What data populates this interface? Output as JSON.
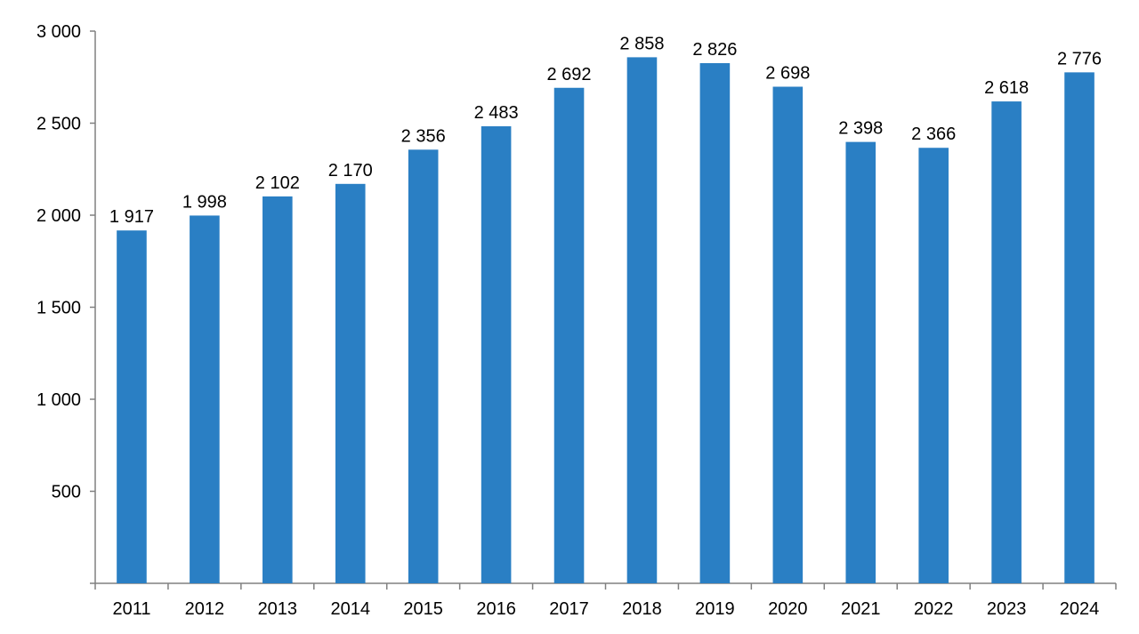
{
  "chart_data": {
    "type": "bar",
    "categories": [
      "2011",
      "2012",
      "2013",
      "2014",
      "2015",
      "2016",
      "2017",
      "2018",
      "2019",
      "2020",
      "2021",
      "2022",
      "2023",
      "2024"
    ],
    "values": [
      1917,
      1998,
      2102,
      2170,
      2356,
      2483,
      2692,
      2858,
      2826,
      2698,
      2398,
      2366,
      2618,
      2776
    ],
    "value_labels": [
      "1 917",
      "1 998",
      "2 102",
      "2 170",
      "2 356",
      "2 483",
      "2 692",
      "2 858",
      "2 826",
      "2 698",
      "2 398",
      "2 366",
      "2 618",
      "2 776"
    ],
    "title": "",
    "xlabel": "",
    "ylabel": "",
    "ylim": [
      0,
      3000
    ],
    "yticks": [
      500,
      1000,
      1500,
      2000,
      2500,
      3000
    ],
    "ytick_labels": [
      "500",
      "1 000",
      "1 500",
      "2 000",
      "2 500",
      "3 000"
    ],
    "grid": false,
    "legend": "none",
    "bar_color": "#2a7fc4"
  }
}
